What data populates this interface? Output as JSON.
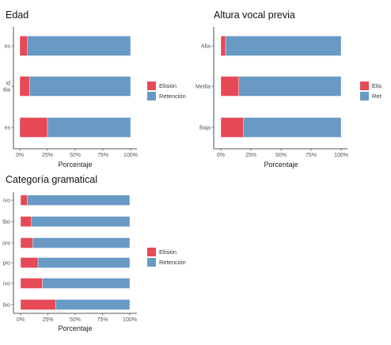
{
  "colors": {
    "elision": "#e64a56",
    "retention": "#6999c5"
  },
  "chart_data": [
    {
      "type": "bar",
      "title": "Edad",
      "xlabel": "Porcentaje",
      "categories": [
        "es",
        "id\ndia",
        "es"
      ],
      "series": [
        {
          "name": "Elisión",
          "values": [
            7,
            9,
            25
          ]
        },
        {
          "name": "Retención",
          "values": [
            93,
            91,
            75
          ]
        }
      ],
      "xlim": [
        0,
        100
      ],
      "ticks": [
        "0%",
        "25%",
        "50%",
        "75%",
        "100%"
      ],
      "legend": "right"
    },
    {
      "type": "bar",
      "title": "Altura vocal previa",
      "xlabel": "Porcentaje",
      "categories": [
        "Alta",
        "Media",
        "Baja"
      ],
      "series": [
        {
          "name": "Elisión",
          "values": [
            4,
            15,
            19
          ]
        },
        {
          "name": "Retención",
          "values": [
            96,
            85,
            81
          ]
        }
      ],
      "xlim": [
        0,
        100
      ],
      "ticks": [
        "0%",
        "25%",
        "50%",
        "75%",
        "100%"
      ],
      "legend_labels": [
        "Elis",
        "Ret"
      ],
      "legend": "right"
    },
    {
      "type": "bar",
      "title": "Categoría gramatical",
      "xlabel": "Porcentaje",
      "categories": [
        "ivo",
        "tbo",
        "ore",
        "pio",
        "ivo",
        "bio"
      ],
      "series": [
        {
          "name": "Elisión",
          "values": [
            6,
            10,
            11,
            16,
            20,
            32
          ]
        },
        {
          "name": "Retención",
          "values": [
            94,
            90,
            89,
            84,
            80,
            68
          ]
        }
      ],
      "xlim": [
        0,
        100
      ],
      "ticks": [
        "0%",
        "25%",
        "50%",
        "75%",
        "100%"
      ],
      "legend": "right"
    }
  ]
}
